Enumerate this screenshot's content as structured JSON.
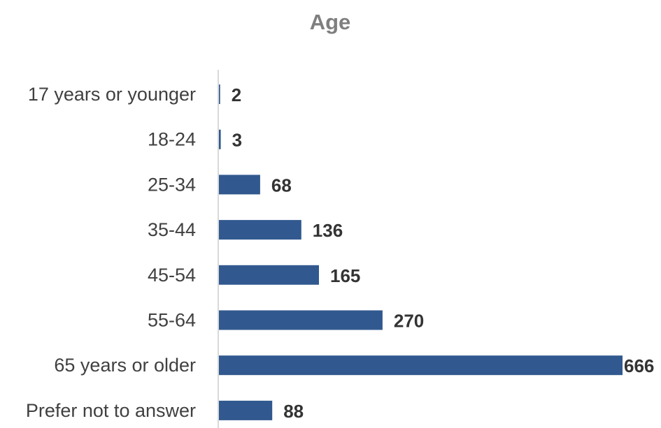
{
  "chart_data": {
    "type": "bar",
    "orientation": "horizontal",
    "title": "Age",
    "categories": [
      "17 years or younger",
      "18-24",
      "25-34",
      "35-44",
      "45-54",
      "55-64",
      "65 years or older",
      "Prefer not to answer"
    ],
    "values": [
      2,
      3,
      68,
      136,
      165,
      270,
      666,
      88
    ],
    "xlabel": "",
    "ylabel": "",
    "xlim": [
      0,
      666
    ],
    "data_labels": true,
    "grid": false,
    "legend": "none",
    "bar_color": "#31598f"
  }
}
